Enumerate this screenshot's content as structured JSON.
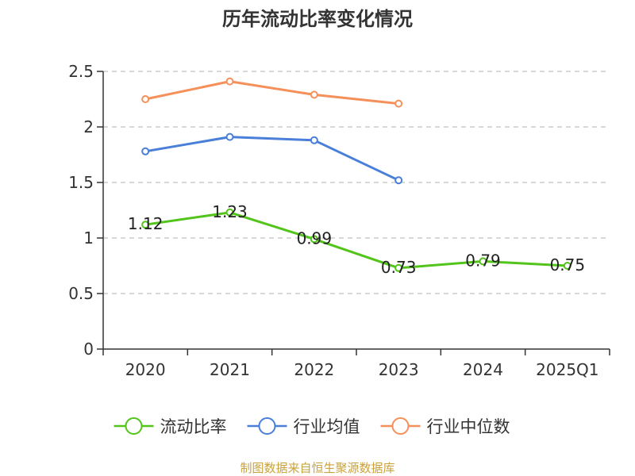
{
  "chart_data": {
    "type": "line",
    "title": "历年流动比率变化情况",
    "categories": [
      "2020",
      "2021",
      "2022",
      "2023",
      "2024",
      "2025Q1"
    ],
    "ylim": [
      0,
      2.5
    ],
    "yticks": [
      "0",
      "0.5",
      "1",
      "1.5",
      "2",
      "2.5"
    ],
    "grid": true,
    "legend_position": "bottom",
    "series": [
      {
        "name": "流动比率",
        "color": "#52c41a",
        "values": [
          1.12,
          1.23,
          0.99,
          0.73,
          0.79,
          0.75
        ],
        "labels": [
          "1.12",
          "1.23",
          "0.99",
          "0.73",
          "0.79",
          "0.75"
        ]
      },
      {
        "name": "行业均值",
        "color": "#4a7fd9",
        "values": [
          1.78,
          1.91,
          1.88,
          1.52,
          null,
          null
        ]
      },
      {
        "name": "行业中位数",
        "color": "#f5905a",
        "values": [
          2.25,
          2.41,
          2.29,
          2.21,
          null,
          null
        ]
      }
    ]
  },
  "source_text": "制图数据来自恒生聚源数据库"
}
